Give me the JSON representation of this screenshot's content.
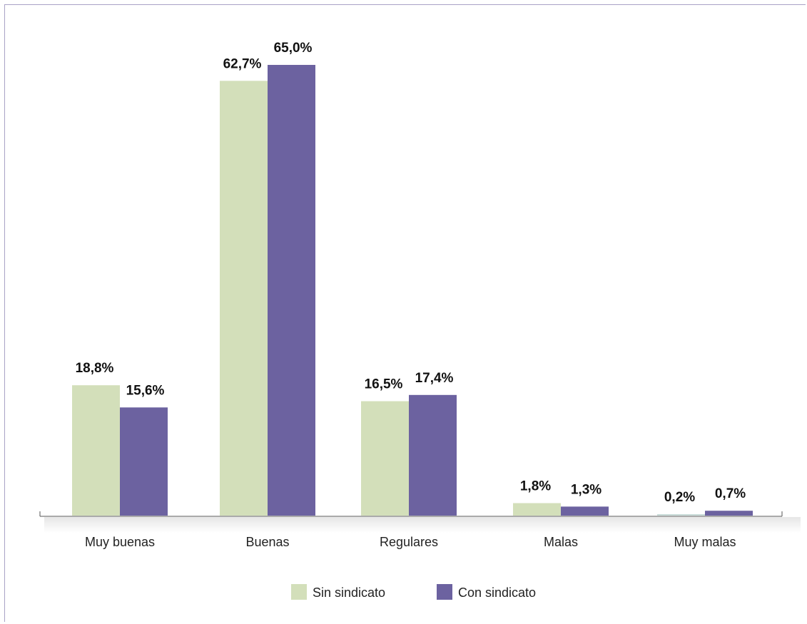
{
  "chart_data": {
    "type": "bar",
    "categories": [
      "Muy buenas",
      "Buenas",
      "Regulares",
      "Malas",
      "Muy malas"
    ],
    "series": [
      {
        "name": "Sin sindicato",
        "values": [
          18.8,
          62.7,
          16.5,
          1.8,
          0.2
        ],
        "labels": [
          "18,8%",
          "62,7%",
          "16,5%",
          "1,8%",
          "0,2%"
        ],
        "color": "#d3dfba"
      },
      {
        "name": "Con sindicato",
        "values": [
          15.6,
          65.0,
          17.4,
          1.3,
          0.7
        ],
        "labels": [
          "15,6%",
          "65,0%",
          "17,4%",
          "1,3%",
          "0,7%"
        ],
        "color": "#6c62a0"
      }
    ],
    "title": "",
    "xlabel": "",
    "ylabel": "",
    "ylim": [
      0,
      65
    ],
    "grid": false,
    "legend": "bottom-center"
  }
}
